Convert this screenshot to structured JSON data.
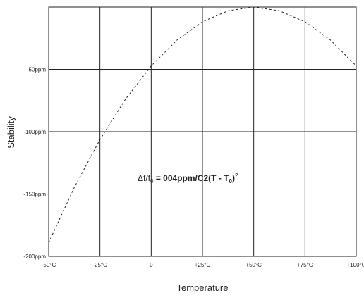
{
  "chart_data": {
    "type": "line",
    "title": "",
    "xlabel": "Temperature",
    "ylabel": "Stability",
    "x_tick_labels": [
      "-50°C",
      "-25°C",
      "0",
      "+25°C",
      "+50°C",
      "+75°C",
      "+100°C"
    ],
    "x_ticks": [
      -50,
      -25,
      0,
      25,
      50,
      75,
      100
    ],
    "y_tick_labels": [
      "-50ppm",
      "-100ppm",
      "-150ppm",
      "-200ppm"
    ],
    "y_ticks": [
      -50,
      -100,
      -150,
      -200
    ],
    "xlim": [
      -50,
      100
    ],
    "ylim": [
      -200,
      0
    ],
    "grid": true,
    "line_style": "dashed",
    "series": [
      {
        "x": [
          -50,
          -37.5,
          -25,
          -12.5,
          0,
          12.5,
          25,
          37.5,
          50,
          62.5,
          75,
          87.5,
          100
        ],
        "values": [
          -189,
          -144.7,
          -106.3,
          -73.8,
          -47.3,
          -26.6,
          -11.8,
          -3,
          0,
          -3,
          -11.8,
          -26.6,
          -47.3
        ]
      }
    ],
    "annotation": {
      "prefix": "Δf/f",
      "sub0": "0",
      "middle": " = 004ppm/C2(T - T",
      "sub1": "0",
      "suffix": ")",
      "sup": "2"
    }
  }
}
